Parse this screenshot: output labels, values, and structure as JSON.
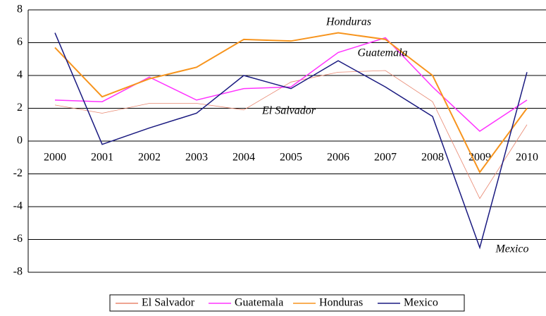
{
  "chart_data": {
    "type": "line",
    "categories": [
      "2000",
      "2001",
      "2002",
      "2003",
      "2004",
      "2005",
      "2006",
      "2007",
      "2008",
      "2009",
      "2010"
    ],
    "series": [
      {
        "name": "El Salvador",
        "color": "#e8866f",
        "values": [
          2.2,
          1.7,
          2.3,
          2.3,
          1.9,
          3.6,
          4.2,
          4.3,
          2.4,
          -3.5,
          1.0
        ]
      },
      {
        "name": "Guatemala",
        "color": "#ff33ff",
        "values": [
          2.5,
          2.4,
          3.9,
          2.5,
          3.2,
          3.3,
          5.4,
          6.3,
          3.3,
          0.6,
          2.5
        ]
      },
      {
        "name": "Honduras",
        "color": "#f7941d",
        "values": [
          5.7,
          2.7,
          3.8,
          4.5,
          6.2,
          6.1,
          6.6,
          6.2,
          4.0,
          -1.9,
          2.0
        ]
      },
      {
        "name": "Mexico",
        "color": "#1a1a80",
        "values": [
          6.6,
          -0.2,
          0.8,
          1.7,
          4.0,
          3.2,
          4.9,
          3.3,
          1.5,
          -6.5,
          4.2
        ]
      }
    ],
    "annotations": [
      "Honduras",
      "Guatemala",
      "El Salvador",
      "Mexico"
    ],
    "ylim": [
      -8,
      8
    ],
    "yticks": [
      -8,
      -6,
      -4,
      -2,
      0,
      2,
      4,
      6,
      8
    ],
    "grid": true
  }
}
